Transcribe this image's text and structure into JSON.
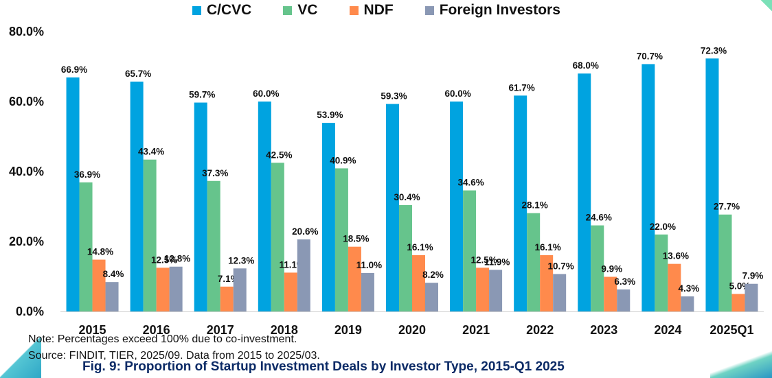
{
  "colors": {
    "C/CVC": "#00a3e0",
    "VC": "#66c48c",
    "NDF": "#ff8a4c",
    "Foreign Investors": "#8a98b4"
  },
  "legend": [
    "C/CVC",
    "VC",
    "NDF",
    "Foreign Investors"
  ],
  "note_line": "Note: Percentages exceed 100% due to co-investment.",
  "source_line": "Source: FINDIT, TIER, 2025/09. Data from 2015 to 2025/03.",
  "caption": "Fig. 9: Proportion of Startup Investment Deals by Investor Type, 2015-Q1 2025",
  "chart_data": {
    "type": "bar",
    "title": "Proportion of Startup Investment Deals by Investor Type, 2015-Q1 2025",
    "xlabel": "",
    "ylabel": "",
    "ylim": [
      0,
      80
    ],
    "yticks": [
      "0.0%",
      "20.0%",
      "40.0%",
      "60.0%",
      "80.0%"
    ],
    "ytick_values": [
      0,
      20,
      40,
      60,
      80
    ],
    "legend_position": "top",
    "categories": [
      "2015",
      "2016",
      "2017",
      "2018",
      "2019",
      "2020",
      "2021",
      "2022",
      "2023",
      "2024",
      "2025Q1"
    ],
    "series": [
      {
        "name": "C/CVC",
        "values": [
          66.9,
          65.7,
          59.7,
          60.0,
          53.9,
          59.3,
          60.0,
          61.7,
          68.0,
          70.7,
          72.3
        ]
      },
      {
        "name": "VC",
        "values": [
          36.9,
          43.4,
          37.3,
          42.5,
          40.9,
          30.4,
          34.6,
          28.1,
          24.6,
          22.0,
          27.7
        ]
      },
      {
        "name": "NDF",
        "values": [
          14.8,
          12.5,
          7.1,
          11.1,
          18.5,
          16.1,
          12.5,
          16.1,
          9.9,
          13.6,
          5.0
        ]
      },
      {
        "name": "Foreign Investors",
        "values": [
          8.4,
          12.8,
          12.3,
          20.6,
          11.0,
          8.2,
          11.9,
          10.7,
          6.3,
          4.3,
          7.9
        ]
      }
    ],
    "labels": [
      [
        "66.9%",
        "65.7%",
        "59.7%",
        "60.0%",
        "53.9%",
        "59.3%",
        "60.0%",
        "61.7%",
        "68.0%",
        "70.7%",
        "72.3%"
      ],
      [
        "36.9%",
        "43.4%",
        "37.3%",
        "42.5%",
        "40.9%",
        "30.4%",
        "34.6%",
        "28.1%",
        "24.6%",
        "22.0%",
        "27.7%"
      ],
      [
        "14.8%",
        "12.5%",
        "7.1%",
        "11.1%",
        "18.5%",
        "16.1%",
        "12.5%",
        "16.1%",
        "9.9%",
        "13.6%",
        "5.0%"
      ],
      [
        "8.4%",
        "12.8%",
        "12.3%",
        "20.6%",
        "11.0%",
        "8.2%",
        "11.9%",
        "10.7%",
        "6.3%",
        "4.3%",
        "7.9%"
      ]
    ]
  }
}
